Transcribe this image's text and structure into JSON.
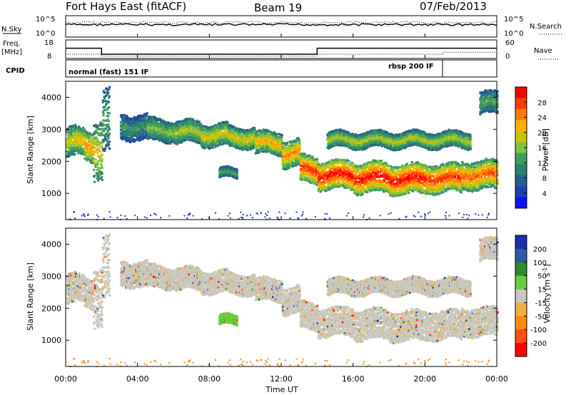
{
  "header": {
    "radar": "Fort Hays East (fitACF)",
    "beam": "Beam 19",
    "date": "07/Feb/2013"
  },
  "top_panels": {
    "nsky_label": "N.Sky",
    "nsearch_label": "N.Search",
    "noise_top_tick": "10^5",
    "noise_bottom_tick": "10^0",
    "freq_label_1": "Freq.",
    "freq_label_2": "[MHz]",
    "freq_ticks": [
      "18",
      "8"
    ],
    "nave_label": "Nave",
    "nave_ticks": [
      "60",
      "0"
    ],
    "cpid_label": "CPID",
    "cpid_mode_1": "normal (fast) 151 IF",
    "cpid_mode_2": "rbsp 200 IF"
  },
  "power_panel": {
    "ylabel": "Slant Range [km]",
    "yticks": [
      "4000",
      "3000",
      "2000",
      "1000"
    ],
    "colorbar_label": "Power [dB]",
    "colorbar_ticks": [
      "28",
      "24",
      "20",
      "16",
      "12",
      "8",
      "4"
    ],
    "colors": [
      "#ff0000",
      "#ff3d00",
      "#ff7a00",
      "#ffb000",
      "#c9c400",
      "#7fc142",
      "#3f9e5c",
      "#2f7f6f",
      "#245f8a",
      "#1f3fb0",
      "#1010ff"
    ]
  },
  "velocity_panel": {
    "ylabel": "Slant Range [km]",
    "yticks": [
      "4000",
      "3000",
      "2000",
      "1000"
    ],
    "colorbar_label": "Velocity [m s",
    "colorbar_sup": "-1",
    "colorbar_close": "]",
    "colorbar_ticks": [
      "200",
      "100",
      "50",
      "15",
      "-15",
      "-50",
      "-100",
      "-200"
    ],
    "colors": [
      "#1a2ea8",
      "#2d5aa0",
      "#2e8a2e",
      "#6acd3a",
      "#c8c8c0",
      "#f0b040",
      "#ff8a10",
      "#ff5010",
      "#ff0000"
    ]
  },
  "xaxis": {
    "label": "Time UT",
    "ticks": [
      "00:00",
      "04:00",
      "08:00",
      "12:00",
      "16:00",
      "20:00",
      "00:00"
    ]
  },
  "chart_data": {
    "type": "heatmap",
    "x_range_hours": [
      0,
      24
    ],
    "y_range_km": [
      180,
      4500
    ],
    "frequency_MHz": [
      {
        "t_start": 0,
        "t_end": 2,
        "value": 14
      },
      {
        "t_start": 2,
        "t_end": 14,
        "value": 10.5
      },
      {
        "t_start": 14,
        "t_end": 24,
        "value": 14
      }
    ],
    "nave": [
      {
        "t_start": 0,
        "t_end": 2,
        "value": 15
      },
      {
        "t_start": 2,
        "t_end": 14,
        "value": 8
      },
      {
        "t_start": 14,
        "t_end": 21,
        "value": 15
      },
      {
        "t_start": 21,
        "t_end": 24,
        "value": 22
      }
    ],
    "cpid_segments": [
      {
        "t_start": 0,
        "t_end": 21,
        "label": "normal (fast) 151 IF"
      },
      {
        "t_start": 21,
        "t_end": 24,
        "label": "rbsp 200 IF"
      }
    ],
    "scatter_bands": [
      {
        "t_start": 0.0,
        "t_end": 0.5,
        "r_low": 2150,
        "r_high": 3100,
        "power_dB": 18
      },
      {
        "t_start": 0.5,
        "t_end": 1.0,
        "r_low": 2200,
        "r_high": 3050,
        "power_dB": 20
      },
      {
        "t_start": 1.0,
        "t_end": 1.5,
        "r_low": 2050,
        "r_high": 3000,
        "power_dB": 22
      },
      {
        "t_start": 1.5,
        "t_end": 2.0,
        "r_low": 1450,
        "r_high": 3300,
        "power_dB": 18
      },
      {
        "t_start": 2.0,
        "t_end": 2.4,
        "r_low": 2350,
        "r_high": 4300,
        "power_dB": 12
      },
      {
        "t_start": 3.0,
        "t_end": 4.5,
        "r_low": 2700,
        "r_high": 3500,
        "power_dB": 10
      },
      {
        "t_start": 4.5,
        "t_end": 6.0,
        "r_low": 2650,
        "r_high": 3350,
        "power_dB": 14
      },
      {
        "t_start": 6.0,
        "t_end": 7.5,
        "r_low": 2600,
        "r_high": 3300,
        "power_dB": 16
      },
      {
        "t_start": 7.5,
        "t_end": 9.0,
        "r_low": 2500,
        "r_high": 3200,
        "power_dB": 18
      },
      {
        "t_start": 9.0,
        "t_end": 10.5,
        "r_low": 2450,
        "r_high": 3100,
        "power_dB": 18
      },
      {
        "t_start": 10.5,
        "t_end": 12.0,
        "r_low": 2250,
        "r_high": 2950,
        "power_dB": 20
      },
      {
        "t_start": 12.0,
        "t_end": 13.0,
        "r_low": 1850,
        "r_high": 2700,
        "power_dB": 22
      },
      {
        "t_start": 13.0,
        "t_end": 14.0,
        "r_low": 1350,
        "r_high": 2200,
        "power_dB": 26
      },
      {
        "t_start": 14.0,
        "t_end": 16.0,
        "r_low": 1150,
        "r_high": 2050,
        "power_dB": 28
      },
      {
        "t_start": 16.0,
        "t_end": 18.0,
        "r_low": 1050,
        "r_high": 2000,
        "power_dB": 28
      },
      {
        "t_start": 18.0,
        "t_end": 20.0,
        "r_low": 1000,
        "r_high": 1950,
        "power_dB": 28
      },
      {
        "t_start": 20.0,
        "t_end": 22.0,
        "r_low": 1050,
        "r_high": 1950,
        "power_dB": 26
      },
      {
        "t_start": 22.0,
        "t_end": 24.0,
        "r_low": 1150,
        "r_high": 2050,
        "power_dB": 24
      },
      {
        "t_start": 14.5,
        "t_end": 22.5,
        "r_low": 2450,
        "r_high": 2950,
        "power_dB": 16
      },
      {
        "t_start": 8.5,
        "t_end": 9.5,
        "r_low": 1500,
        "r_high": 1800,
        "power_dB": 12
      },
      {
        "t_start": 23.0,
        "t_end": 24.0,
        "r_low": 3500,
        "r_high": 4200,
        "power_dB": 12
      }
    ],
    "xlabel": "Time UT",
    "ylabel": "Slant Range [km]"
  }
}
